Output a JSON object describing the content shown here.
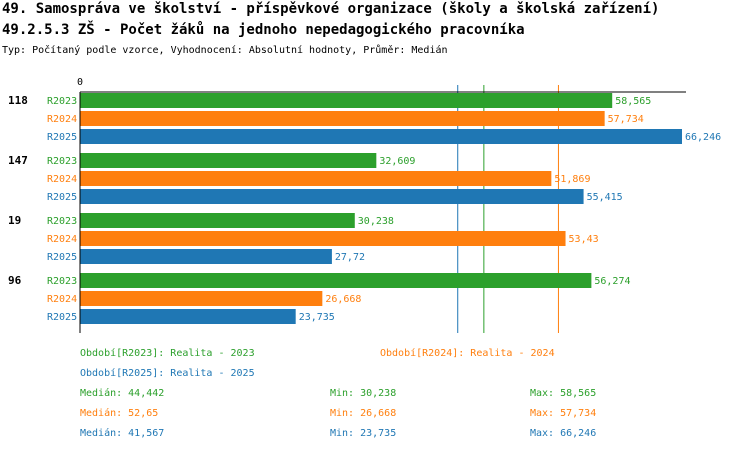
{
  "header": {
    "title_line1": "49. Samospráva ve školství - příspěvkové organizace (školy a školská zařízení)",
    "title_line2": "49.2.5.3 ZŠ - Počet žáků na jednoho nepedagogického pracovníka",
    "subtitle": "Typ: Počítaný podle vzorce, Vyhodnocení: Absolutní hodnoty, Průměr: Medián"
  },
  "chart_data": {
    "type": "bar",
    "orientation": "horizontal",
    "categories": [
      "118",
      "147",
      "19",
      "96"
    ],
    "series": [
      {
        "name": "R2023",
        "color": "#2ca02c",
        "values": [
          58.565,
          32.609,
          30.238,
          56.274
        ],
        "labels": [
          "58,565",
          "32,609",
          "30,238",
          "56,274"
        ]
      },
      {
        "name": "R2024",
        "color": "#ff7f0e",
        "values": [
          57.734,
          51.869,
          53.43,
          26.668
        ],
        "labels": [
          "57,734",
          "51,869",
          "53,43",
          "26,668"
        ]
      },
      {
        "name": "R2025",
        "color": "#1f77b4",
        "values": [
          66.246,
          55.415,
          27.72,
          23.735
        ],
        "labels": [
          "66,246",
          "55,415",
          "27,72",
          "23,735"
        ]
      }
    ],
    "axis_zero_label": "0",
    "xlim": [
      0,
      66.246
    ],
    "median_lines": [
      {
        "series": "R2023",
        "value": 44.442,
        "color": "#2ca02c"
      },
      {
        "series": "R2024",
        "value": 52.65,
        "color": "#ff7f0e"
      },
      {
        "series": "R2025",
        "value": 41.567,
        "color": "#1f77b4"
      }
    ]
  },
  "legend": {
    "period_2023": "Období[R2023]: Realita - 2023",
    "period_2024": "Období[R2024]: Realita - 2024",
    "period_2025": "Období[R2025]: Realita - 2025",
    "stats": [
      {
        "median": "Medián: 44,442",
        "min": "Min: 30,238",
        "max": "Max: 58,565"
      },
      {
        "median": "Medián: 52,65",
        "min": "Min: 26,668",
        "max": "Max: 57,734"
      },
      {
        "median": "Medián: 41,567",
        "min": "Min: 23,735",
        "max": "Max: 66,246"
      }
    ]
  }
}
